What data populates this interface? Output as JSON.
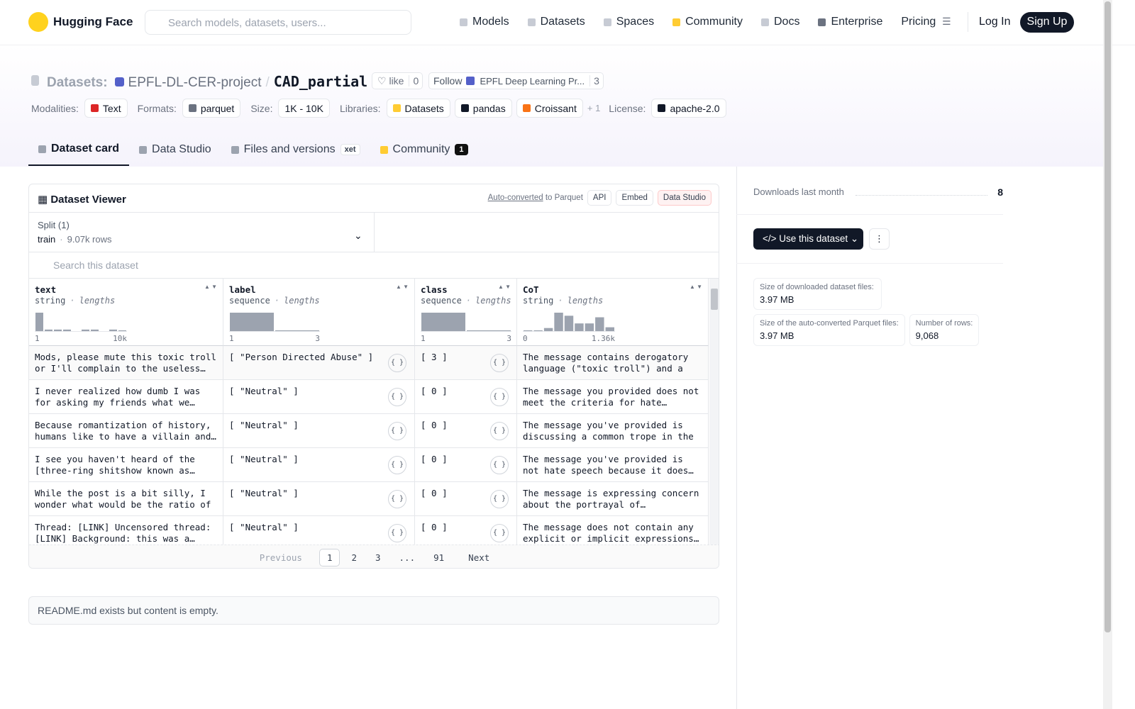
{
  "nav": {
    "logo": "Hugging Face",
    "search_placeholder": "Search models, datasets, users...",
    "links": [
      "Models",
      "Datasets",
      "Spaces",
      "Community",
      "Docs",
      "Enterprise",
      "Pricing"
    ],
    "login": "Log In",
    "signup": "Sign Up"
  },
  "header": {
    "section": "Datasets:",
    "owner": "EPFL-DL-CER-project",
    "separator": "/",
    "name": "CAD_partial",
    "like": "like",
    "like_count": 0,
    "follow": "Follow",
    "follow_org": "EPFL Deep Learning Pr...",
    "follow_count": 3,
    "tags": [
      {
        "label": "Modalities:",
        "items": [
          "Text"
        ]
      },
      {
        "label": "Formats:",
        "items": [
          "parquet"
        ]
      },
      {
        "label": "Size:",
        "items": [
          "1K - 10K"
        ]
      },
      {
        "label": "Libraries:",
        "items": [
          "Datasets",
          "pandas",
          "Croissant"
        ],
        "more": "+ 1"
      },
      {
        "label": "License:",
        "items": [
          "apache-2.0"
        ]
      }
    ]
  },
  "tabs": [
    {
      "label": "Dataset card"
    },
    {
      "label": "Data Studio"
    },
    {
      "label": "Files and versions",
      "badge": "xet"
    },
    {
      "label": "Community",
      "badge": 1
    }
  ],
  "viewer": {
    "title": "Dataset Viewer",
    "auto_converted": "Auto-converted",
    "to_parquet": "to Parquet",
    "buttons": [
      "API",
      "Embed",
      "Data Studio"
    ],
    "split_label": "Split (1)",
    "split": "train",
    "split_rows": "9.07k rows",
    "search_placeholder": "Search this dataset",
    "columns": [
      {
        "name": "text",
        "type": "string",
        "stat": "lengths",
        "min": "1",
        "max": "10k",
        "hist": [
          24,
          2,
          2,
          2,
          0,
          2,
          2,
          0,
          2,
          1
        ]
      },
      {
        "name": "label",
        "type": "sequence",
        "stat": "lengths",
        "min": "1",
        "max": "3",
        "hist": [
          24,
          1
        ]
      },
      {
        "name": "class",
        "type": "sequence",
        "stat": "lengths",
        "min": "1",
        "max": "3",
        "hist": [
          24,
          1
        ]
      },
      {
        "name": "CoT",
        "type": "string",
        "stat": "lengths",
        "min": "0",
        "max": "1.36k",
        "hist": [
          1,
          1,
          4,
          24,
          20,
          10,
          10,
          18,
          5
        ]
      }
    ],
    "rows": [
      [
        "Mods, please mute this toxic troll or I'll complain to the useless admins.",
        "[ \"Person Directed Abuse\" ]",
        "[ 3 ]",
        "The message contains derogatory language (\"toxic troll\") and a"
      ],
      [
        "I never realized how dumb I was for asking my friends what we should eat",
        "[ \"Neutral\" ]",
        "[ 0 ]",
        "The message you provided does not meet the criteria for hate speech."
      ],
      [
        "Because romantization of history, humans like to have a villain and a",
        "[ \"Neutral\" ]",
        "[ 0 ]",
        "The message you've provided is discussing a common trope in the"
      ],
      [
        "I see you haven't heard of the [three-ring shitshow known as Great",
        "[ \"Neutral\" ]",
        "[ 0 ]",
        "The message you've provided is not hate speech because it does not meet"
      ],
      [
        "While the post is a bit silly, I wonder what would be the ratio of",
        "[ \"Neutral\" ]",
        "[ 0 ]",
        "The message is expressing concern about the portrayal of individuals"
      ],
      [
        "Thread: [LINK] Uncensored thread: [LINK] Background: this was a thread",
        "[ \"Neutral\" ]",
        "[ 0 ]",
        "The message does not contain any explicit or implicit expressions of"
      ]
    ],
    "pagination": {
      "previous": "Previous",
      "pages": [
        "1",
        "2",
        "3",
        "...",
        "91"
      ],
      "next": "Next"
    }
  },
  "readme": "README.md exists but content is empty.",
  "sidebar": {
    "downloads_label": "Downloads last month",
    "downloads": 8,
    "use_button": "Use this dataset",
    "stats": [
      {
        "label": "Size of downloaded dataset files:",
        "value": "3.97 MB"
      },
      {
        "label": "Size of the auto-converted Parquet files:",
        "value": "3.97 MB"
      },
      {
        "label": "Number of rows:",
        "value": "9,068"
      }
    ]
  }
}
